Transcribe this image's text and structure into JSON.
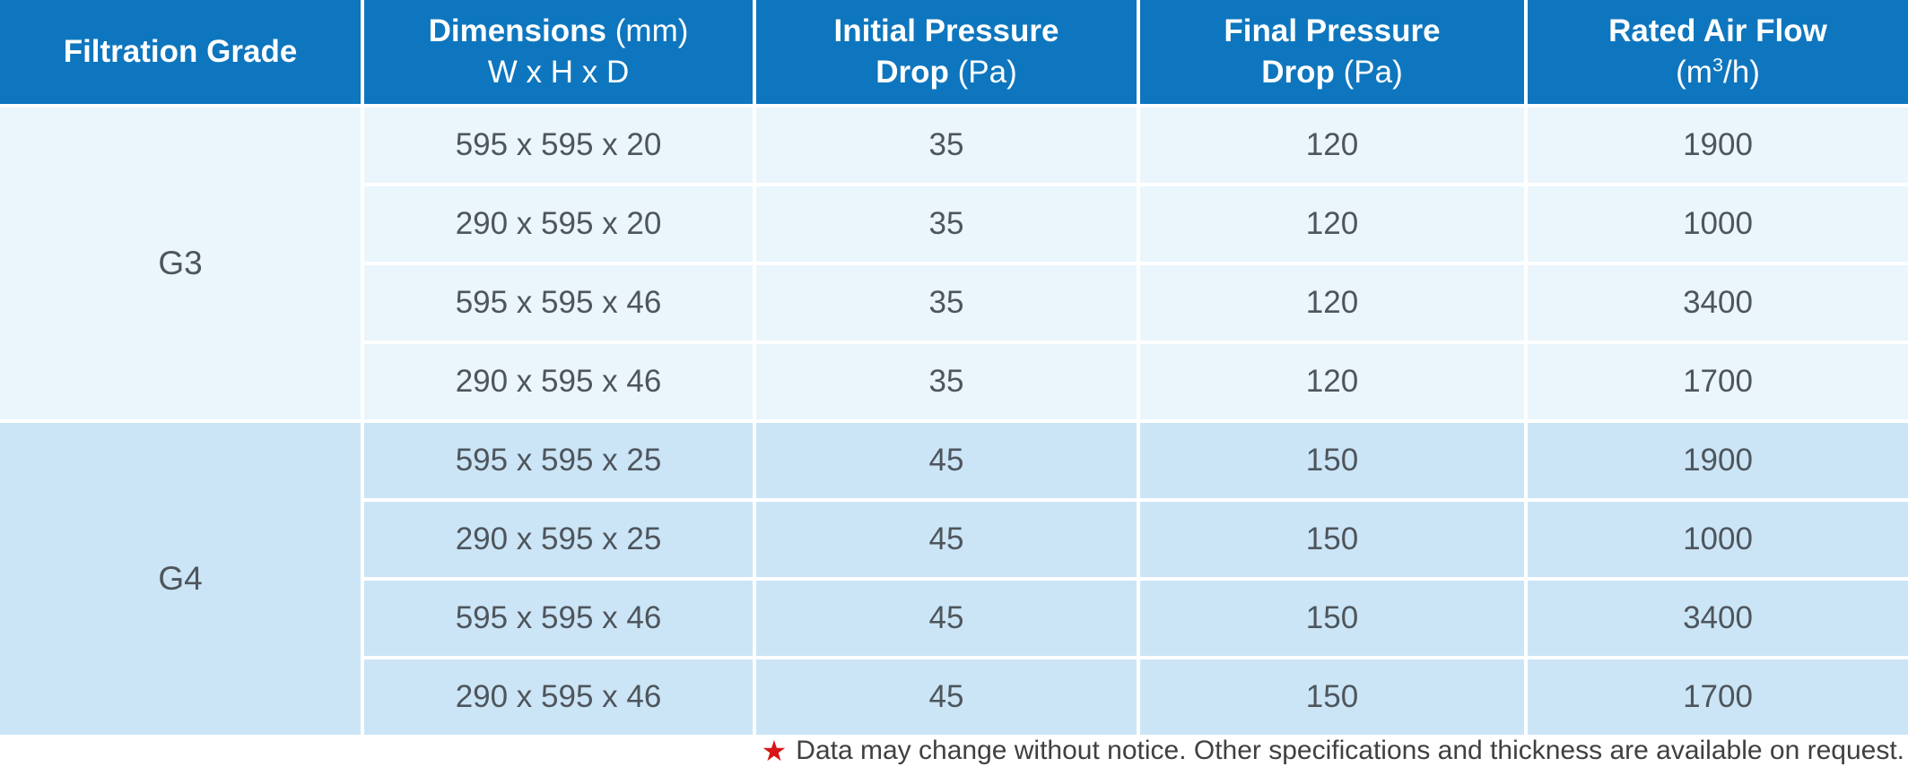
{
  "table": {
    "header": {
      "filtration_grade": "Filtration Grade",
      "dimensions_bold": "Dimensions",
      "dimensions_unit": "(mm)",
      "dimensions_sub": "W x H x D",
      "initial_line1": "Initial Pressure",
      "initial_line2_bold": "Drop",
      "initial_line2_unit": "(Pa)",
      "final_line1": "Final Pressure",
      "final_line2_bold": "Drop",
      "final_line2_unit": "(Pa)",
      "rated_line1": "Rated Air Flow",
      "rated_unit_prefix": "(m",
      "rated_unit_sup": "3",
      "rated_unit_suffix": "/h)"
    },
    "groups": [
      {
        "grade": "G3",
        "rows": [
          {
            "dimensions": "595 x 595 x 20",
            "initial_pressure_drop": "35",
            "final_pressure_drop": "120",
            "rated_air_flow": "1900"
          },
          {
            "dimensions": "290 x 595 x 20",
            "initial_pressure_drop": "35",
            "final_pressure_drop": "120",
            "rated_air_flow": "1000"
          },
          {
            "dimensions": "595 x 595 x 46",
            "initial_pressure_drop": "35",
            "final_pressure_drop": "120",
            "rated_air_flow": "3400"
          },
          {
            "dimensions": "290 x 595 x 46",
            "initial_pressure_drop": "35",
            "final_pressure_drop": "120",
            "rated_air_flow": "1700"
          }
        ]
      },
      {
        "grade": "G4",
        "rows": [
          {
            "dimensions": "595 x 595 x 25",
            "initial_pressure_drop": "45",
            "final_pressure_drop": "150",
            "rated_air_flow": "1900"
          },
          {
            "dimensions": "290 x 595 x 25",
            "initial_pressure_drop": "45",
            "final_pressure_drop": "150",
            "rated_air_flow": "1000"
          },
          {
            "dimensions": "595 x 595 x 46",
            "initial_pressure_drop": "45",
            "final_pressure_drop": "150",
            "rated_air_flow": "3400"
          },
          {
            "dimensions": "290 x 595 x 46",
            "initial_pressure_drop": "45",
            "final_pressure_drop": "150",
            "rated_air_flow": "1700"
          }
        ]
      }
    ]
  },
  "footnote": {
    "star": "★",
    "text": "Data may change without notice. Other specifications and thickness are available on request."
  },
  "colors": {
    "header_blue": "#0e76be",
    "header_text": "#ffffff",
    "g3_bg": "#eaf5fc",
    "g4_bg": "#cbe5f6",
    "cell_text": "#4e555c",
    "separator_white": "#ffffff",
    "star_red": "#d81616",
    "footnote_text": "#404040",
    "page_bg": "#ffffff"
  }
}
